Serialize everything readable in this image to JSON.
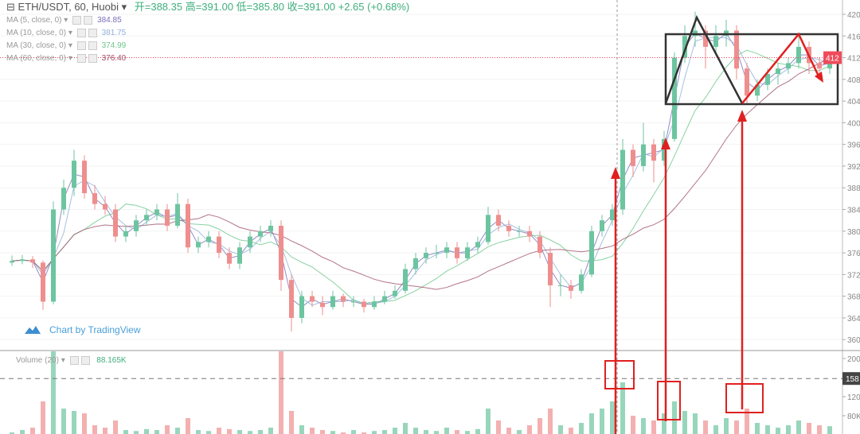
{
  "header": {
    "symbol": "ETH/USDT, 60, Huobi",
    "ohlc_text": "开=388.35  高=391.00  低=385.80  收=391.00  +2.65 (+0.68%)"
  },
  "indicators": [
    {
      "label": "MA (5, close, 0)",
      "value": "384.85",
      "color": "#7b6fb8"
    },
    {
      "label": "MA (10, close, 0)",
      "value": "381.75",
      "color": "#8fb0d8"
    },
    {
      "label": "MA (30, close, 0)",
      "value": "374.99",
      "color": "#6cc58a"
    },
    {
      "label": "MA (60, close, 0)",
      "value": "376.40",
      "color": "#a0506a"
    }
  ],
  "volume_legend": {
    "label": "Volume (20)",
    "value": "88.165K"
  },
  "branding": "Chart by TradingView",
  "colors": {
    "up": "#6cc5a0",
    "down": "#ef8e8e",
    "annotation_red": "#e02020",
    "annotation_black": "#333333",
    "price_badge": "#ef4b5a",
    "volume_badge": "#444444"
  },
  "chart_data": {
    "type": "candlestick",
    "title": "ETH/USDT, 60, Huobi",
    "ylim": [
      358,
      422
    ],
    "price_ticks": [
      "420",
      "416",
      "412",
      "408",
      "404",
      "400",
      "396",
      "392",
      "388",
      "384",
      "380",
      "376",
      "372",
      "368",
      "364",
      "360"
    ],
    "last_price_badge": "412",
    "last_price": 412,
    "volume_ticks": [
      "200",
      "120",
      "80K"
    ],
    "volume_badge": "158",
    "volume_badge_value": 158,
    "ohlc": [
      [
        374.2,
        375.5,
        373.6,
        374.5
      ],
      [
        374.5,
        375.6,
        373.9,
        374.8
      ],
      [
        374.8,
        375.4,
        373.2,
        374.2
      ],
      [
        374.2,
        374.6,
        365.5,
        367
      ],
      [
        367,
        385.5,
        366.5,
        384
      ],
      [
        384,
        389.5,
        383,
        388
      ],
      [
        388,
        395,
        386.5,
        393
      ],
      [
        393,
        394,
        386,
        387
      ],
      [
        387,
        388.5,
        384,
        385
      ],
      [
        385,
        386.5,
        383,
        384
      ],
      [
        384,
        385,
        378,
        379
      ],
      [
        379,
        381,
        378,
        380
      ],
      [
        380,
        383,
        379,
        382
      ],
      [
        382,
        384,
        381,
        383
      ],
      [
        383,
        385,
        382,
        384
      ],
      [
        384,
        385,
        380,
        381
      ],
      [
        381,
        387,
        380.5,
        385
      ],
      [
        385,
        386,
        376,
        377
      ],
      [
        377,
        379,
        376,
        378
      ],
      [
        378,
        380,
        377,
        379
      ],
      [
        379,
        380,
        375,
        376
      ],
      [
        376,
        377,
        373,
        374
      ],
      [
        374,
        378,
        373,
        377
      ],
      [
        377,
        380,
        376,
        379
      ],
      [
        379,
        381,
        378,
        380
      ],
      [
        380,
        382,
        379,
        381
      ],
      [
        381,
        382,
        369,
        371
      ],
      [
        371,
        372,
        361.5,
        364
      ],
      [
        364,
        369,
        363,
        368
      ],
      [
        368,
        369,
        366,
        367
      ],
      [
        366.8,
        368,
        364.5,
        366
      ],
      [
        366,
        369,
        365.5,
        368
      ],
      [
        368,
        368.5,
        366,
        367
      ],
      [
        367,
        368,
        366,
        367
      ],
      [
        367,
        367.5,
        365,
        366
      ],
      [
        366,
        368,
        365.5,
        367
      ],
      [
        367,
        369,
        366.5,
        368
      ],
      [
        368,
        370,
        367.5,
        369
      ],
      [
        369,
        374,
        368.5,
        373
      ],
      [
        373,
        376,
        372,
        375
      ],
      [
        375,
        377,
        374,
        376
      ],
      [
        376,
        377.5,
        375,
        376
      ],
      [
        376,
        378,
        375,
        377
      ],
      [
        377,
        378,
        374,
        375
      ],
      [
        375,
        378,
        374.5,
        377
      ],
      [
        377,
        379,
        376,
        378
      ],
      [
        378,
        384.5,
        377.5,
        383
      ],
      [
        383,
        384,
        380,
        381
      ],
      [
        381,
        382,
        379,
        380
      ],
      [
        380,
        381,
        379,
        380
      ],
      [
        380,
        381,
        378,
        379
      ],
      [
        379,
        380,
        375,
        376
      ],
      [
        376,
        377,
        366,
        370
      ],
      [
        370,
        372,
        368,
        370
      ],
      [
        370,
        371,
        367.5,
        369
      ],
      [
        369,
        373,
        368.5,
        372
      ],
      [
        372,
        381,
        371.5,
        380
      ],
      [
        380,
        383,
        379,
        382
      ],
      [
        382,
        385,
        381,
        384
      ],
      [
        384,
        397,
        383,
        395
      ],
      [
        395,
        396,
        390,
        392
      ],
      [
        392,
        400,
        391,
        396
      ],
      [
        396,
        397,
        389,
        393
      ],
      [
        393,
        398.5,
        392,
        397
      ],
      [
        397,
        413,
        396.5,
        412
      ],
      [
        412,
        418,
        411,
        416
      ],
      [
        416,
        420.5,
        414,
        417
      ],
      [
        417,
        418,
        410,
        414
      ],
      [
        414,
        418,
        413,
        416
      ],
      [
        416,
        419,
        414,
        417
      ],
      [
        417,
        418,
        408,
        410
      ],
      [
        410,
        411,
        403.5,
        405
      ],
      [
        405,
        408,
        404,
        407
      ],
      [
        407,
        410,
        406,
        409
      ],
      [
        409,
        411,
        407,
        410
      ],
      [
        410,
        412,
        409,
        411
      ],
      [
        411,
        416,
        410,
        414
      ],
      [
        414,
        415,
        409,
        411
      ],
      [
        411,
        412,
        408,
        410
      ],
      [
        410,
        413,
        409,
        412
      ]
    ],
    "volume": [
      45,
      50,
      55,
      110,
      215,
      95,
      90,
      85,
      60,
      55,
      70,
      50,
      48,
      52,
      50,
      60,
      55,
      75,
      50,
      48,
      55,
      52,
      50,
      48,
      50,
      55,
      215,
      90,
      60,
      55,
      50,
      48,
      45,
      50,
      45,
      48,
      50,
      55,
      65,
      55,
      50,
      48,
      55,
      50,
      48,
      52,
      95,
      70,
      55,
      50,
      60,
      75,
      95,
      60,
      55,
      65,
      85,
      95,
      110,
      150,
      80,
      75,
      70,
      85,
      110,
      90,
      85,
      70,
      60,
      75,
      70,
      95,
      65,
      60,
      55,
      60,
      70,
      65,
      60,
      58
    ]
  }
}
